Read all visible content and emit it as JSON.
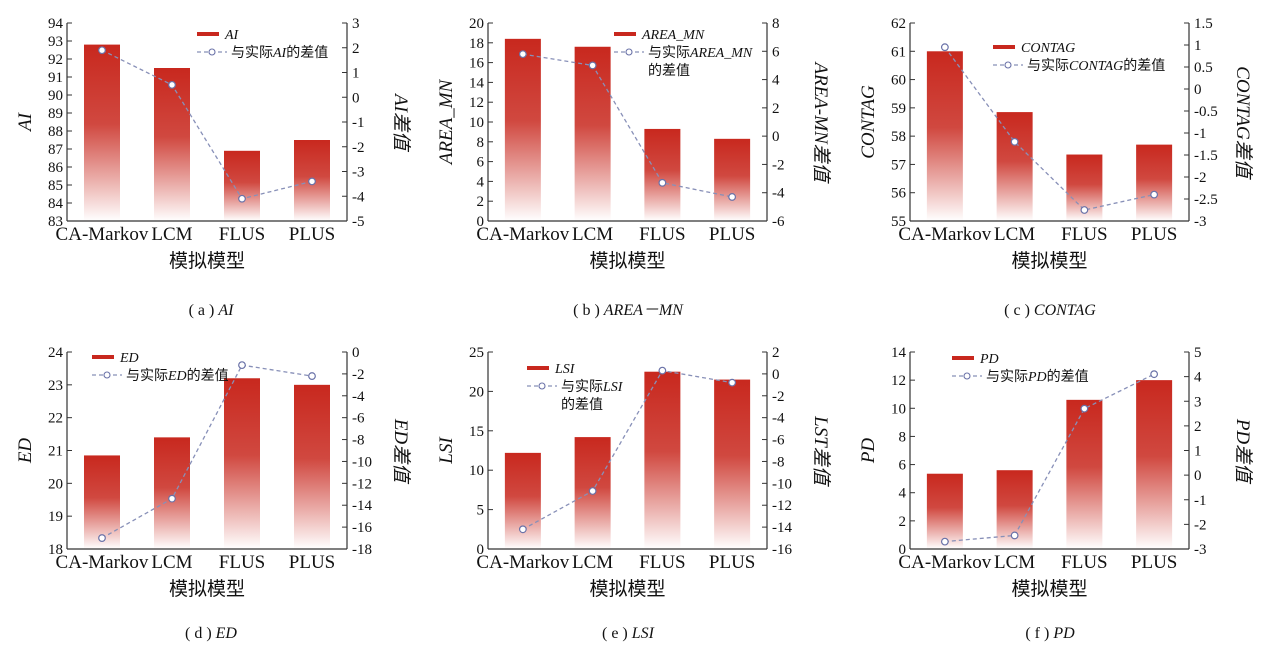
{
  "colors": {
    "bar_top": "#c8281e",
    "bar_bottom": "#ffffff",
    "line": "#8890b8",
    "marker": "#6a72a8",
    "axis": "#333333"
  },
  "chart_data": [
    {
      "type": "bar",
      "caption_prefix": "( a )",
      "caption_var": "AI",
      "categories": [
        "CA-Markov",
        "LCM",
        "FLUS",
        "PLUS"
      ],
      "xlabel": "模拟模型",
      "ylabel": "AI",
      "y2label": "AI差值",
      "ylim": [
        83,
        94
      ],
      "yticks": [
        83,
        84,
        85,
        86,
        87,
        88,
        89,
        90,
        91,
        92,
        93,
        94
      ],
      "y2lim": [
        -5,
        3
      ],
      "y2ticks": [
        -5,
        -4,
        -3,
        -2,
        -1,
        0,
        1,
        2,
        3
      ],
      "series": [
        {
          "name": "AI",
          "kind": "bar",
          "values": [
            92.8,
            91.5,
            86.9,
            87.5
          ]
        },
        {
          "name": "与实际AI的差值",
          "kind": "line",
          "axis": "right",
          "values": [
            1.9,
            0.5,
            -4.1,
            -3.4
          ]
        }
      ],
      "legend": [
        {
          "parts": [
            {
              "t": "AI",
              "i": true
            }
          ]
        },
        {
          "parts": [
            {
              "t": "与实际",
              "i": false
            },
            {
              "t": "AI",
              "i": true
            },
            {
              "t": "的差值",
              "i": false
            }
          ]
        }
      ]
    },
    {
      "type": "bar",
      "caption_prefix": "( b )",
      "caption_var": "AREA－MN",
      "categories": [
        "CA-Markov",
        "LCM",
        "FLUS",
        "PLUS"
      ],
      "xlabel": "模拟模型",
      "ylabel": "AREA_MN",
      "y2label": "AREA-MN差值",
      "ylim": [
        0,
        20
      ],
      "yticks": [
        0,
        2,
        4,
        6,
        8,
        10,
        12,
        14,
        16,
        18,
        20
      ],
      "y2lim": [
        -6,
        8
      ],
      "y2ticks": [
        -6,
        -4,
        -2,
        0,
        2,
        4,
        6,
        8
      ],
      "series": [
        {
          "name": "AREA_MN",
          "kind": "bar",
          "values": [
            18.4,
            17.6,
            9.3,
            8.3
          ]
        },
        {
          "name": "与实际AREA_MN的差值",
          "kind": "line",
          "axis": "right",
          "values": [
            5.8,
            5.0,
            -3.3,
            -4.3
          ]
        }
      ],
      "legend": [
        {
          "parts": [
            {
              "t": "AREA_MN",
              "i": true
            }
          ]
        },
        {
          "parts": [
            {
              "t": "与实际",
              "i": false
            },
            {
              "t": "AREA_MN",
              "i": true
            }
          ]
        },
        {
          "parts": [
            {
              "t": "的差值",
              "i": false
            }
          ]
        }
      ]
    },
    {
      "type": "bar",
      "caption_prefix": "( c )",
      "caption_var": "CONTAG",
      "categories": [
        "CA-Markov",
        "LCM",
        "FLUS",
        "PLUS"
      ],
      "xlabel": "模拟模型",
      "ylabel": "CONTAG",
      "y2label": "CONTAG差值",
      "ylim": [
        55,
        62
      ],
      "yticks": [
        55,
        56,
        57,
        58,
        59,
        60,
        61,
        62
      ],
      "y2lim": [
        -3,
        1.5
      ],
      "y2ticks": [
        -3,
        -2.5,
        -2,
        -1.5,
        -1,
        -0.5,
        0,
        0.5,
        1,
        1.5
      ],
      "series": [
        {
          "name": "CONTAG",
          "kind": "bar",
          "values": [
            61.0,
            58.85,
            57.35,
            57.7
          ]
        },
        {
          "name": "与实际CONTAG的差值",
          "kind": "line",
          "axis": "right",
          "values": [
            0.95,
            -1.2,
            -2.75,
            -2.4
          ]
        }
      ],
      "legend": [
        {
          "parts": [
            {
              "t": "CONTAG",
              "i": true
            }
          ]
        },
        {
          "parts": [
            {
              "t": "与实际",
              "i": false
            },
            {
              "t": "CONTAG",
              "i": true
            },
            {
              "t": "的差值",
              "i": false
            }
          ]
        }
      ]
    },
    {
      "type": "bar",
      "caption_prefix": "( d )",
      "caption_var": "ED",
      "categories": [
        "CA-Markov",
        "LCM",
        "FLUS",
        "PLUS"
      ],
      "xlabel": "模拟模型",
      "ylabel": "ED",
      "y2label": "ED差值",
      "ylim": [
        18,
        24
      ],
      "yticks": [
        18,
        19,
        20,
        21,
        22,
        23,
        24
      ],
      "y2lim": [
        -18,
        0
      ],
      "y2ticks": [
        -18,
        -16,
        -14,
        -12,
        -10,
        -8,
        -6,
        -4,
        -2,
        0
      ],
      "series": [
        {
          "name": "ED",
          "kind": "bar",
          "values": [
            20.85,
            21.4,
            23.2,
            23.0
          ]
        },
        {
          "name": "与实际ED的差值",
          "kind": "line",
          "axis": "right",
          "values": [
            -17.0,
            -13.4,
            -1.2,
            -2.2
          ]
        }
      ],
      "legend": [
        {
          "parts": [
            {
              "t": "ED",
              "i": true
            }
          ]
        },
        {
          "parts": [
            {
              "t": "与实际",
              "i": false
            },
            {
              "t": "ED",
              "i": true
            },
            {
              "t": "的差值",
              "i": false
            }
          ]
        }
      ]
    },
    {
      "type": "bar",
      "caption_prefix": "( e )",
      "caption_var": "LSI",
      "categories": [
        "CA-Markov",
        "LCM",
        "FLUS",
        "PLUS"
      ],
      "xlabel": "模拟模型",
      "ylabel": "LSI",
      "y2label": "LST差值",
      "ylim": [
        0,
        25
      ],
      "yticks": [
        0,
        5,
        10,
        15,
        20,
        25
      ],
      "y2lim": [
        -16,
        2
      ],
      "y2ticks": [
        -16,
        -14,
        -12,
        -10,
        -8,
        -6,
        -4,
        -2,
        0,
        2
      ],
      "series": [
        {
          "name": "LSI",
          "kind": "bar",
          "values": [
            12.2,
            14.2,
            22.5,
            21.5
          ]
        },
        {
          "name": "与实际LSI的差值",
          "kind": "line",
          "axis": "right",
          "values": [
            -14.2,
            -10.7,
            0.3,
            -0.8
          ]
        }
      ],
      "legend": [
        {
          "parts": [
            {
              "t": "LSI",
              "i": true
            }
          ]
        },
        {
          "parts": [
            {
              "t": "与实际",
              "i": false
            },
            {
              "t": "LSI",
              "i": true
            }
          ]
        },
        {
          "parts": [
            {
              "t": "的差值",
              "i": false
            }
          ]
        }
      ]
    },
    {
      "type": "bar",
      "caption_prefix": "( f )",
      "caption_var": "PD",
      "categories": [
        "CA-Markov",
        "LCM",
        "FLUS",
        "PLUS"
      ],
      "xlabel": "模拟模型",
      "ylabel": "PD",
      "y2label": "PD差值",
      "ylim": [
        0,
        14
      ],
      "yticks": [
        0,
        2,
        4,
        6,
        8,
        10,
        12,
        14
      ],
      "y2lim": [
        -3,
        5
      ],
      "y2ticks": [
        -3,
        -2,
        -1,
        0,
        1,
        2,
        3,
        4,
        5
      ],
      "series": [
        {
          "name": "PD",
          "kind": "bar",
          "values": [
            5.35,
            5.6,
            10.6,
            12.0
          ]
        },
        {
          "name": "与实际PD的差值",
          "kind": "line",
          "axis": "right",
          "values": [
            -2.7,
            -2.45,
            2.7,
            4.1
          ]
        }
      ],
      "legend": [
        {
          "parts": [
            {
              "t": "PD",
              "i": true
            }
          ]
        },
        {
          "parts": [
            {
              "t": "与实际",
              "i": false
            },
            {
              "t": "PD",
              "i": true
            },
            {
              "t": "的差值",
              "i": false
            }
          ]
        }
      ]
    }
  ]
}
